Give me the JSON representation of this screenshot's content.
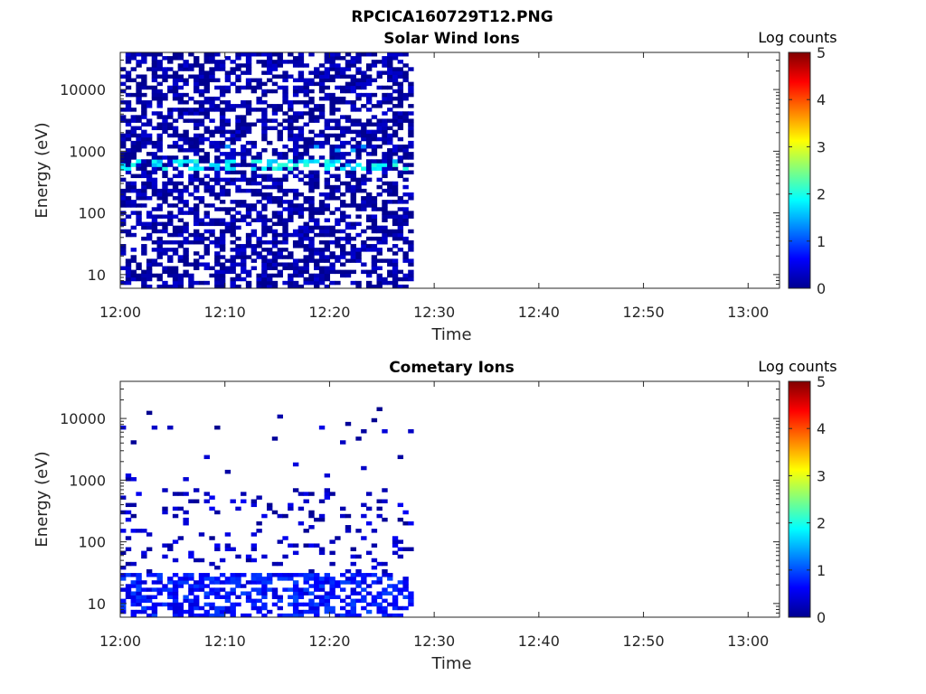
{
  "figure": {
    "title": "RPCICA160729T12.PNG"
  },
  "colors": {
    "colormap": [
      "#00008f",
      "#0000ff",
      "#0080ff",
      "#00ffff",
      "#80ff80",
      "#ffff00",
      "#ff8000",
      "#ff0000",
      "#800000"
    ]
  },
  "chart_data": [
    {
      "type": "heatmap",
      "title": "Solar Wind Ions",
      "xlabel": "Time",
      "ylabel": "Energy (eV)",
      "colorbar": {
        "label": "Log counts",
        "range": [
          0,
          5
        ],
        "ticks": [
          "0",
          "1",
          "2",
          "3",
          "4",
          "5"
        ]
      },
      "x_range": [
        "12:00",
        "13:03"
      ],
      "x_ticks": [
        "12:00",
        "12:10",
        "12:20",
        "12:30",
        "12:40",
        "12:50",
        "13:00"
      ],
      "y_scale": "log",
      "y_range": [
        6,
        40000
      ],
      "y_ticks": [
        "10",
        "100",
        "1000",
        "10000"
      ],
      "data_extent": {
        "time_start": "12:00",
        "time_end": "12:28",
        "energy_min": 6,
        "energy_max": 40000
      },
      "features": [
        {
          "time_start": "12:00",
          "time_end": "12:28",
          "energy_min": 6,
          "energy_max": 40000,
          "log_counts": 0.1,
          "fill": 0.55
        },
        {
          "time_start": "12:00",
          "time_end": "12:28",
          "energy_min": 500,
          "energy_max": 700,
          "log_counts": 1.8,
          "fill": 0.35
        },
        {
          "time_start": "12:03",
          "time_end": "12:25",
          "energy_min": 950,
          "energy_max": 1200,
          "log_counts": 1.3,
          "fill": 0.12
        }
      ]
    },
    {
      "type": "heatmap",
      "title": "Cometary Ions",
      "xlabel": "Time",
      "ylabel": "Energy (eV)",
      "colorbar": {
        "label": "Log counts",
        "range": [
          0,
          5
        ],
        "ticks": [
          "0",
          "1",
          "2",
          "3",
          "4",
          "5"
        ]
      },
      "x_range": [
        "12:00",
        "13:03"
      ],
      "x_ticks": [
        "12:00",
        "12:10",
        "12:20",
        "12:30",
        "12:40",
        "12:50",
        "13:00"
      ],
      "y_scale": "log",
      "y_range": [
        6,
        40000
      ],
      "y_ticks": [
        "10",
        "100",
        "1000",
        "10000"
      ],
      "data_extent": {
        "time_start": "12:00",
        "time_end": "12:28",
        "energy_min": 6,
        "energy_max": 16000
      },
      "features": [
        {
          "time_start": "12:00",
          "time_end": "12:28",
          "energy_min": 6,
          "energy_max": 30,
          "log_counts": 0.7,
          "fill": 0.55
        },
        {
          "time_start": "12:00",
          "time_end": "12:28",
          "energy_min": 30,
          "energy_max": 700,
          "log_counts": 0.3,
          "fill": 0.14
        },
        {
          "time_start": "12:00",
          "time_end": "12:28",
          "energy_min": 1000,
          "energy_max": 16000,
          "log_counts": 0.2,
          "fill": 0.02
        }
      ]
    }
  ]
}
